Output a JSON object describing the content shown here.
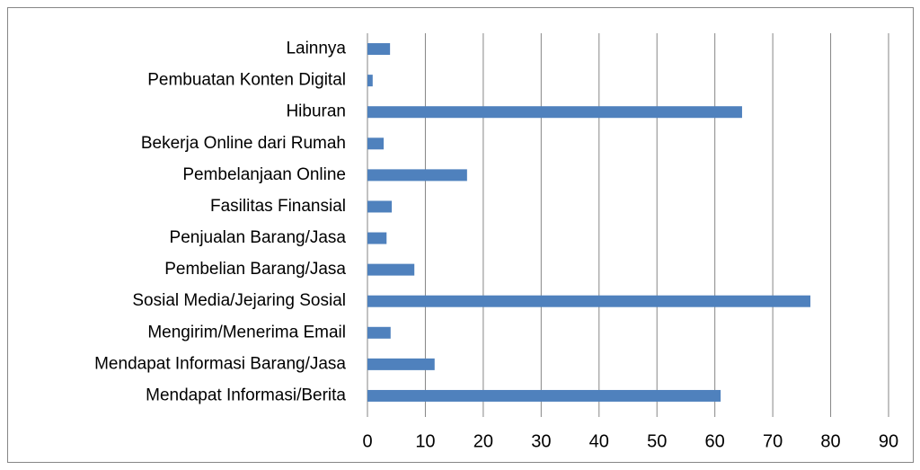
{
  "chart_data": {
    "type": "bar",
    "orientation": "horizontal",
    "categories": [
      "Lainnya",
      "Pembuatan Konten Digital",
      "Hiburan",
      "Bekerja Online dari Rumah",
      "Pembelanjaan Online",
      "Fasilitas Finansial",
      "Penjualan Barang/Jasa",
      "Pembelian Barang/Jasa",
      "Sosial Media/Jejaring Sosial",
      "Mengirim/Menerima Email",
      "Mendapat Informasi Barang/Jasa",
      "Mendapat Informasi/Berita"
    ],
    "values": [
      3.9,
      0.9,
      64.7,
      2.8,
      17.2,
      4.2,
      3.3,
      8.1,
      76.5,
      4.0,
      11.6,
      61.0
    ],
    "color": "#4f81bd",
    "xlim": [
      0,
      90
    ],
    "xticks": [
      0,
      10,
      20,
      30,
      40,
      50,
      60,
      70,
      80,
      90
    ],
    "grid": true
  }
}
